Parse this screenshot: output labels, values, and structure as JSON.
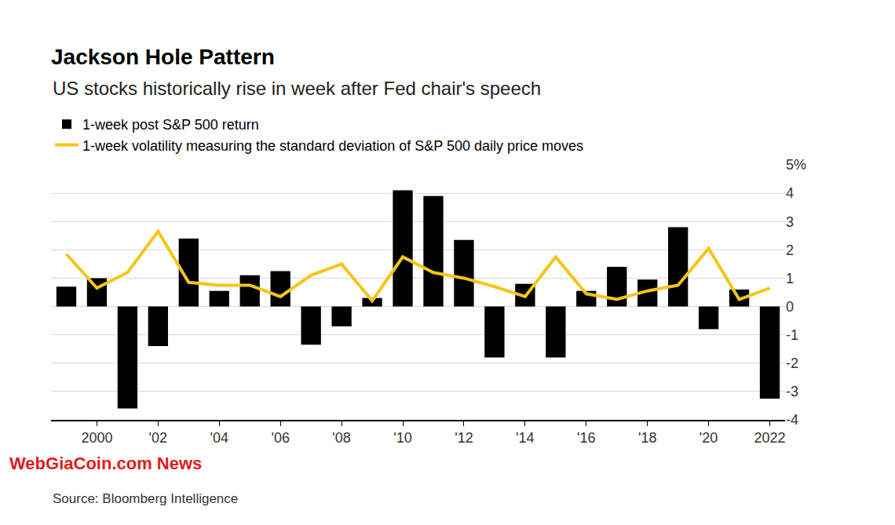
{
  "chart_data": {
    "type": "bar",
    "title": "Jackson Hole Pattern",
    "subtitle": "US stocks historically rise in week after Fed chair's speech",
    "source": "Source: Bloomberg Intelligence",
    "watermark": "WebGiaCoin.com News",
    "categories": [
      null,
      "2000",
      null,
      "'02",
      null,
      "'04",
      null,
      "'06",
      null,
      "'08",
      null,
      "'10",
      null,
      "'12",
      null,
      "'14",
      null,
      "'16",
      null,
      "'18",
      null,
      "'20",
      null,
      "2022"
    ],
    "series": [
      {
        "name": "1-week post S&P 500 return",
        "type": "bar",
        "color": "#000000",
        "values": [
          0.7,
          1.0,
          -3.6,
          -1.4,
          2.4,
          0.55,
          1.1,
          1.25,
          -1.35,
          -0.7,
          0.3,
          4.1,
          3.9,
          2.35,
          -1.8,
          0.8,
          -1.8,
          0.55,
          1.4,
          0.95,
          2.8,
          -0.8,
          0.6,
          -3.25
        ]
      },
      {
        "name": "1-week volatility measuring the standard deviation of S&P 500 daily price moves",
        "type": "line",
        "color": "#f5c518",
        "values": [
          1.85,
          0.65,
          1.2,
          2.65,
          0.85,
          0.75,
          0.75,
          0.35,
          1.1,
          1.5,
          0.2,
          1.75,
          1.2,
          1.0,
          0.7,
          0.35,
          1.75,
          0.45,
          0.25,
          0.55,
          0.75,
          2.05,
          0.25,
          0.65
        ]
      }
    ],
    "ylim": [
      -4,
      5
    ],
    "yticks": [
      -4,
      -3,
      -2,
      -1,
      0,
      1,
      2,
      3,
      4,
      {
        "value": 5,
        "label": "5%"
      }
    ],
    "grid": true,
    "legend": "top-left"
  }
}
